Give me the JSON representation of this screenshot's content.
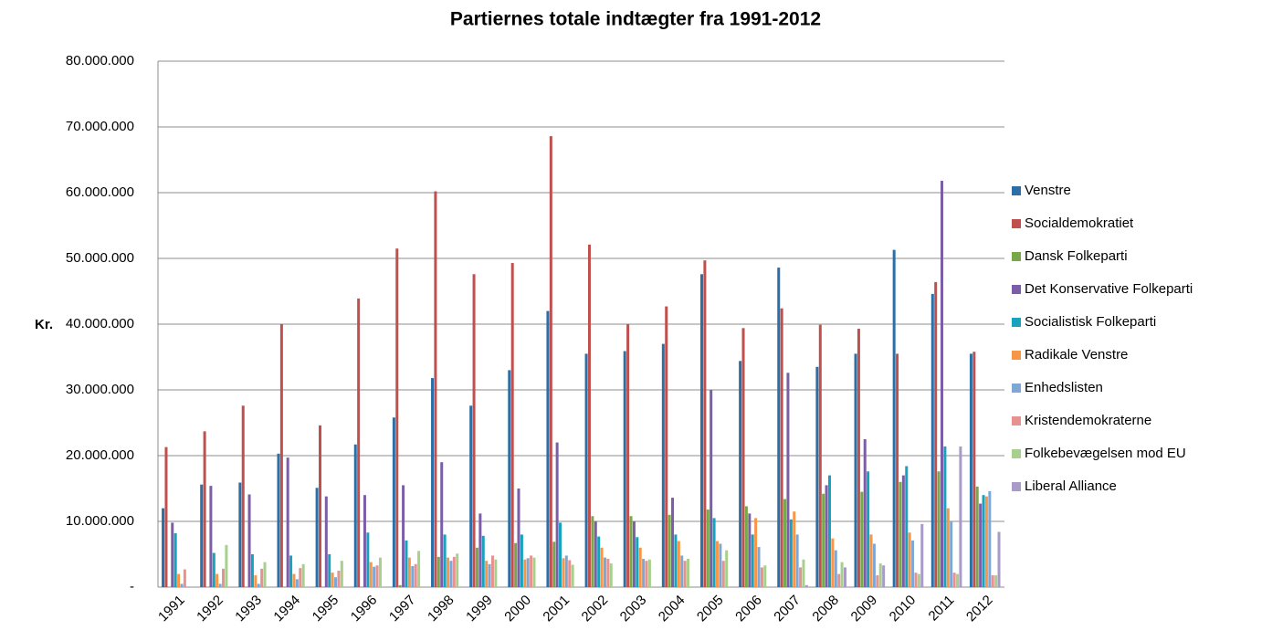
{
  "chart_data": {
    "type": "bar",
    "title": "Partiernes totale indtægter fra 1991-2012",
    "y_label": "Kr.",
    "categories": [
      "1991",
      "1992",
      "1993",
      "1994",
      "1995",
      "1996",
      "1997",
      "1998",
      "1999",
      "2000",
      "2001",
      "2002",
      "2003",
      "2004",
      "2005",
      "2006",
      "2007",
      "2008",
      "2009",
      "2010",
      "2011",
      "2012"
    ],
    "series": [
      {
        "name": "Venstre",
        "color": "#2c6fa6",
        "values": [
          12000000,
          15600000,
          15900000,
          20300000,
          15100000,
          21700000,
          25800000,
          31800000,
          27600000,
          33000000,
          42000000,
          35500000,
          35900000,
          37000000,
          47600000,
          34400000,
          48600000,
          33500000,
          35500000,
          51300000,
          44600000,
          35500000
        ]
      },
      {
        "name": "Socialdemokratiet",
        "color": "#c0504d",
        "values": [
          21300000,
          23700000,
          27600000,
          40000000,
          24600000,
          43900000,
          51500000,
          60200000,
          47600000,
          49300000,
          68600000,
          52100000,
          40000000,
          42700000,
          49700000,
          39400000,
          42400000,
          39900000,
          39300000,
          35500000,
          46400000,
          35800000
        ]
      },
      {
        "name": "Dansk Folkeparti",
        "color": "#77a84a",
        "values": [
          0,
          0,
          0,
          0,
          0,
          0,
          300000,
          4600000,
          6000000,
          6700000,
          6900000,
          10800000,
          10800000,
          11000000,
          11800000,
          12300000,
          13400000,
          14200000,
          14500000,
          16000000,
          17600000,
          15300000
        ]
      },
      {
        "name": "Det Konservative Folkeparti",
        "color": "#7b5ea7",
        "values": [
          9800000,
          15400000,
          14100000,
          19700000,
          13800000,
          14000000,
          15500000,
          19000000,
          11200000,
          15000000,
          22000000,
          10000000,
          10000000,
          13600000,
          30000000,
          11200000,
          32600000,
          15500000,
          22500000,
          17000000,
          61800000,
          12700000
        ]
      },
      {
        "name": "Socialistisk Folkeparti",
        "color": "#17a2bd",
        "values": [
          8200000,
          5200000,
          5000000,
          4800000,
          5000000,
          8300000,
          7100000,
          8000000,
          7800000,
          8000000,
          9800000,
          7700000,
          7600000,
          8000000,
          10500000,
          8000000,
          10300000,
          17000000,
          17600000,
          18400000,
          21400000,
          14000000
        ]
      },
      {
        "name": "Radikale Venstre",
        "color": "#f79646",
        "values": [
          2000000,
          2000000,
          1800000,
          2000000,
          2200000,
          3800000,
          4500000,
          4500000,
          4000000,
          4200000,
          4400000,
          6000000,
          6000000,
          7000000,
          7000000,
          10500000,
          11500000,
          7400000,
          8000000,
          8300000,
          12000000,
          13800000
        ]
      },
      {
        "name": "Enhedslisten",
        "color": "#7fa7d6",
        "values": [
          500000,
          500000,
          500000,
          1200000,
          1500000,
          3100000,
          3200000,
          4000000,
          3500000,
          4400000,
          4800000,
          4500000,
          4300000,
          4800000,
          6600000,
          6100000,
          8000000,
          5600000,
          6600000,
          7100000,
          10000000,
          14600000
        ]
      },
      {
        "name": "Kristendemokraterne",
        "color": "#e8928f",
        "values": [
          2700000,
          2800000,
          2800000,
          2900000,
          2500000,
          3300000,
          3500000,
          4600000,
          4800000,
          4800000,
          4100000,
          4300000,
          4000000,
          4000000,
          4000000,
          3000000,
          3000000,
          2000000,
          1800000,
          2200000,
          2200000,
          1800000
        ]
      },
      {
        "name": "Folkebevægelsen mod EU",
        "color": "#a8d08d",
        "values": [
          0,
          6400000,
          3800000,
          3500000,
          4000000,
          4500000,
          5500000,
          5100000,
          4200000,
          4500000,
          3400000,
          3600000,
          4200000,
          4300000,
          5600000,
          3300000,
          4200000,
          3800000,
          3600000,
          2000000,
          2000000,
          1800000
        ]
      },
      {
        "name": "Liberal Alliance",
        "color": "#a99bc8",
        "values": [
          0,
          0,
          0,
          0,
          0,
          0,
          0,
          0,
          0,
          0,
          0,
          0,
          0,
          0,
          0,
          0,
          300000,
          3000000,
          3300000,
          9600000,
          21400000,
          8400000
        ]
      }
    ],
    "ylim": [
      0,
      80000000
    ],
    "yticks": [
      {
        "value": 0,
        "label": "-"
      },
      {
        "value": 10000000,
        "label": "10.000.000"
      },
      {
        "value": 20000000,
        "label": "20.000.000"
      },
      {
        "value": 30000000,
        "label": "30.000.000"
      },
      {
        "value": 40000000,
        "label": "40.000.000"
      },
      {
        "value": 50000000,
        "label": "50.000.000"
      },
      {
        "value": 60000000,
        "label": "60.000.000"
      },
      {
        "value": 70000000,
        "label": "70.000.000"
      },
      {
        "value": 80000000,
        "label": "80.000.000"
      }
    ],
    "grid": true,
    "legend": "right"
  }
}
